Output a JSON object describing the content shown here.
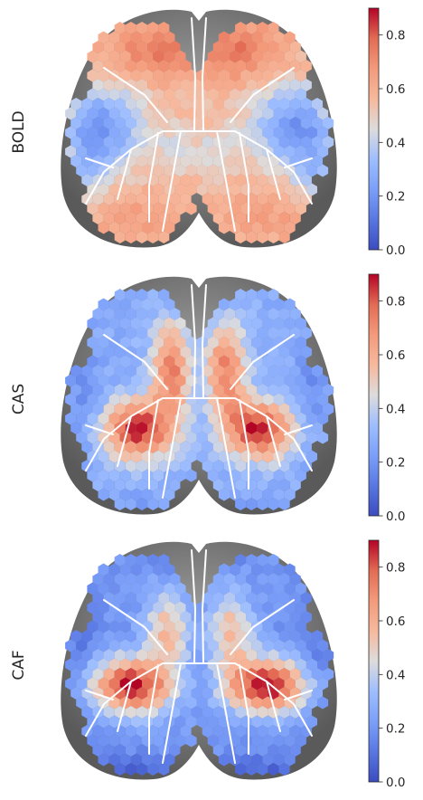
{
  "chart_data": [
    {
      "type": "heatmap",
      "title": "",
      "ylabel": "BOLD",
      "colormap": "coolwarm",
      "clim": [
        0.0,
        0.9
      ],
      "colorbar_ticks": [
        "0.0",
        "0.2",
        "0.4",
        "0.6",
        "0.8"
      ],
      "tick_values": [
        0.0,
        0.2,
        0.4,
        0.6,
        0.8
      ],
      "pattern": "high in anterior/medial and posterior cortex, lowest in lateral sensory band",
      "value_profile": {
        "anterior": 0.72,
        "central_lateral": 0.22,
        "posterior": 0.62,
        "medial": 0.55
      }
    },
    {
      "type": "heatmap",
      "title": "",
      "ylabel": "CAS",
      "colormap": "coolwarm",
      "clim": [
        0.0,
        0.9
      ],
      "colorbar_ticks": [
        "0.0",
        "0.2",
        "0.4",
        "0.6",
        "0.8"
      ],
      "tick_values": [
        0.0,
        0.2,
        0.4,
        0.6,
        0.8
      ],
      "pattern": "peaks in posterior-lateral hotspots and medial strip, low at edges and rostral midline",
      "value_profile": {
        "hotspot": 0.88,
        "medial": 0.75,
        "edge": 0.25,
        "rostral_midline": 0.15
      }
    },
    {
      "type": "heatmap",
      "title": "",
      "ylabel": "CAF",
      "colormap": "coolwarm",
      "clim": [
        0.0,
        0.9
      ],
      "colorbar_ticks": [
        "0.0",
        "0.2",
        "0.4",
        "0.6",
        "0.8"
      ],
      "tick_values": [
        0.0,
        0.2,
        0.4,
        0.6,
        0.8
      ],
      "pattern": "strong hotspots in lateral central cortex, low in rostral and caudal periphery",
      "value_profile": {
        "hotspot": 0.9,
        "medial": 0.7,
        "edge": 0.15,
        "rostral_midline": 0.1
      }
    }
  ],
  "colors": {
    "outline_gray": "#7a7a7a",
    "boundary": "#ffffff",
    "text": "#262626"
  }
}
